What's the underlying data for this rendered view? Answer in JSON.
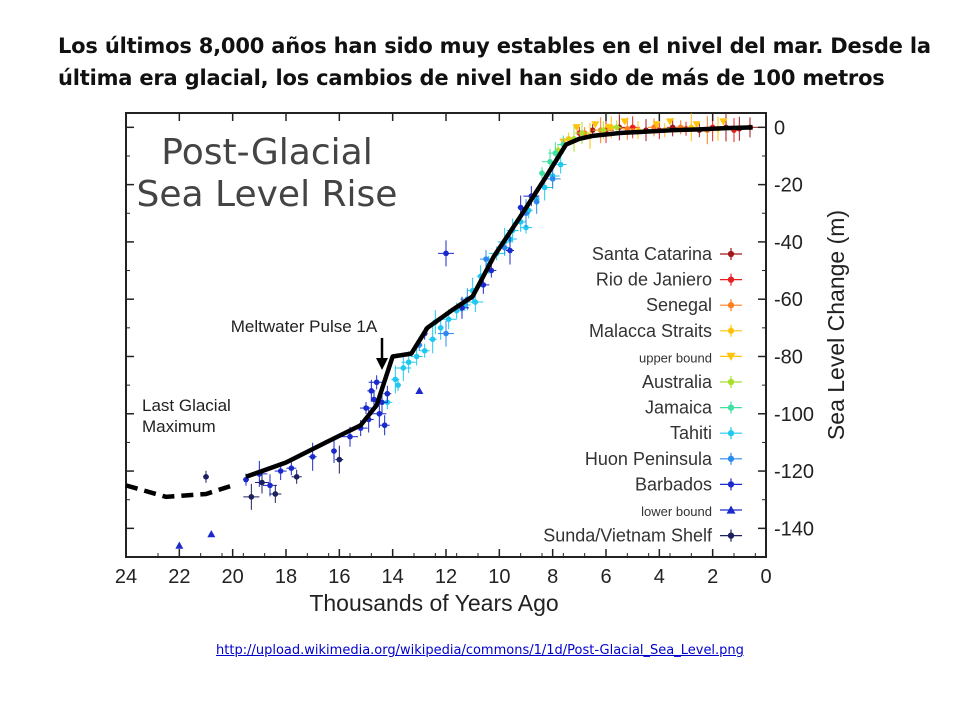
{
  "slide": {
    "title": "Los últimos 8,000 años han sido muy estables en el nivel del mar. Desde la última era glacial, los cambios de nivel han sido de más de 100 metros",
    "source_url": "http://upload.wikimedia.org/wikipedia/commons/1/1d/Post-Glacial_Sea_Level.png"
  },
  "chart_data": {
    "type": "scatter",
    "title": "Post-Glacial Sea Level Rise",
    "xlabel": "Thousands of Years Ago",
    "ylabel": "Sea Level Change (m)",
    "xlim": [
      24,
      0
    ],
    "ylim": [
      -150,
      5
    ],
    "x_ticks": [
      24,
      22,
      20,
      18,
      16,
      14,
      12,
      10,
      8,
      6,
      4,
      2,
      0
    ],
    "y_ticks": [
      0,
      -20,
      -40,
      -60,
      -80,
      -100,
      -120,
      -140
    ],
    "grid": false,
    "legend_position": "right",
    "annotations": [
      {
        "text": "Meltwater Pulse 1A",
        "x": 14.4,
        "y": -84
      },
      {
        "text": "Last Glacial\nMaximum",
        "x": 21,
        "y": -108
      }
    ],
    "trend_line": {
      "x": [
        19.5,
        18,
        16.5,
        15.2,
        14.6,
        14.0,
        13.3,
        12.7,
        11.8,
        11.0,
        10.2,
        9.2,
        8.3,
        7.5,
        7.0,
        6.5,
        5.5,
        4.5,
        3.5,
        2.5,
        1.5,
        0.5
      ],
      "y": [
        -122,
        -117,
        -110,
        -104,
        -97,
        -80,
        -79,
        -70,
        -64,
        -59,
        -45,
        -31,
        -18,
        -6,
        -4,
        -3,
        -2,
        -1.5,
        -1,
        -0.7,
        -0.3,
        0
      ]
    },
    "trend_line_extrapolated": {
      "x": [
        24,
        22.5,
        21,
        20
      ],
      "y": [
        -125,
        -129,
        -128,
        -125
      ]
    },
    "series": [
      {
        "name": "Santa Catarina",
        "color": "#a01818",
        "marker": "circle",
        "x": [
          6.5,
          5.5,
          4.5,
          3.5,
          2.5,
          1.5,
          1.0,
          0.6
        ],
        "y": [
          -1,
          0,
          -1,
          0,
          -1,
          0,
          -0.5,
          0
        ]
      },
      {
        "name": "Rio de Janiero",
        "color": "#e82020",
        "marker": "circle",
        "x": [
          7.0,
          6.0,
          5.0,
          4.0,
          3.0,
          2.0,
          1.2
        ],
        "y": [
          -2,
          -1,
          0,
          -1,
          -0.5,
          0,
          -1
        ]
      },
      {
        "name": "Senegal",
        "color": "#ff7f1e",
        "marker": "circle",
        "x": [
          6.8,
          6.2,
          5.2,
          4.2,
          3.2,
          2.2
        ],
        "y": [
          -2,
          -1,
          -0.5,
          0,
          0,
          -1
        ]
      },
      {
        "name": "Malacca Straits",
        "color": "#ffc30a",
        "marker": "circle",
        "x": [
          7.4,
          6.6,
          5.8,
          4.8,
          3.8,
          2.8,
          1.8
        ],
        "y": [
          -4,
          -3,
          0,
          -1,
          -1,
          0,
          -0.5
        ]
      },
      {
        "name": "upper bound",
        "color": "#ffc30a",
        "marker": "triangle-down",
        "x": [
          7.6,
          7.1,
          6.4,
          5.9,
          5.3,
          4.1,
          3.6,
          2.6,
          1.6
        ],
        "y": [
          -5,
          0,
          1,
          0,
          2,
          1,
          2,
          1,
          2
        ]
      },
      {
        "name": "Australia",
        "color": "#a8e02c",
        "marker": "circle",
        "x": [
          7.8,
          7.2,
          6.9,
          6.1,
          5.6
        ],
        "y": [
          -8,
          -4,
          -2,
          -1,
          0
        ]
      },
      {
        "name": "Jamaica",
        "color": "#40e0a0",
        "marker": "circle",
        "x": [
          8.4,
          8.1,
          7.9,
          7.6
        ],
        "y": [
          -16,
          -12,
          -9,
          -6
        ]
      },
      {
        "name": "Tahiti",
        "color": "#20c8f0",
        "marker": "circle",
        "x": [
          13.8,
          13.6,
          13.4,
          13.1,
          12.8,
          12.5,
          12.2,
          11.9,
          11.6,
          11.3,
          11.0,
          10.7,
          10.4,
          10.1,
          9.8,
          9.5,
          9.2,
          8.9,
          8.6,
          8.3,
          8.0,
          7.7,
          14.2,
          13.9,
          12.4,
          10.9,
          9.6,
          9.0
        ],
        "y": [
          -90,
          -84,
          -82,
          -80,
          -78,
          -74,
          -70,
          -67,
          -64,
          -62,
          -57,
          -52,
          -48,
          -44,
          -40,
          -36,
          -33,
          -29,
          -25,
          -21,
          -17,
          -13,
          -96,
          -88,
          -68,
          -61,
          -39,
          -35
        ]
      },
      {
        "name": "Huon Peninsula",
        "color": "#2a8af0",
        "marker": "circle",
        "x": [
          13.0,
          12.0,
          11.2,
          10.5,
          9.8,
          9.0,
          8.6,
          8.0
        ],
        "y": [
          -76,
          -72,
          -60,
          -46,
          -42,
          -30,
          -26,
          -18
        ]
      },
      {
        "name": "Barbados",
        "color": "#1a2acc",
        "marker": "circle",
        "x": [
          19.5,
          19.0,
          18.6,
          18.2,
          17.8,
          17.0,
          16.2,
          15.6,
          15.2,
          15.0,
          14.9,
          14.8,
          14.7,
          14.6,
          14.5,
          14.4,
          14.3,
          14.2,
          12.8,
          12.0,
          11.4,
          10.6,
          10.3,
          9.6,
          9.2,
          8.8
        ],
        "y": [
          -123,
          -121,
          -125,
          -120,
          -119,
          -115,
          -113,
          -108,
          -105,
          -98,
          -102,
          -92,
          -95,
          -89,
          -100,
          -96,
          -104,
          -93,
          -72,
          -44,
          -63,
          -55,
          -50,
          -43,
          -28,
          -24
        ]
      },
      {
        "name": "lower bound",
        "color": "#1a2acc",
        "marker": "triangle-up",
        "x": [
          22.0,
          20.8,
          13.0
        ],
        "y": [
          -146,
          -142,
          -92
        ]
      },
      {
        "name": "Sunda/Vietnam Shelf",
        "color": "#1c2060",
        "marker": "circle",
        "x": [
          21.0,
          19.3,
          18.9,
          18.4,
          17.6,
          16.0
        ],
        "y": [
          -122,
          -129,
          -124,
          -128,
          -122,
          -116
        ]
      }
    ]
  }
}
